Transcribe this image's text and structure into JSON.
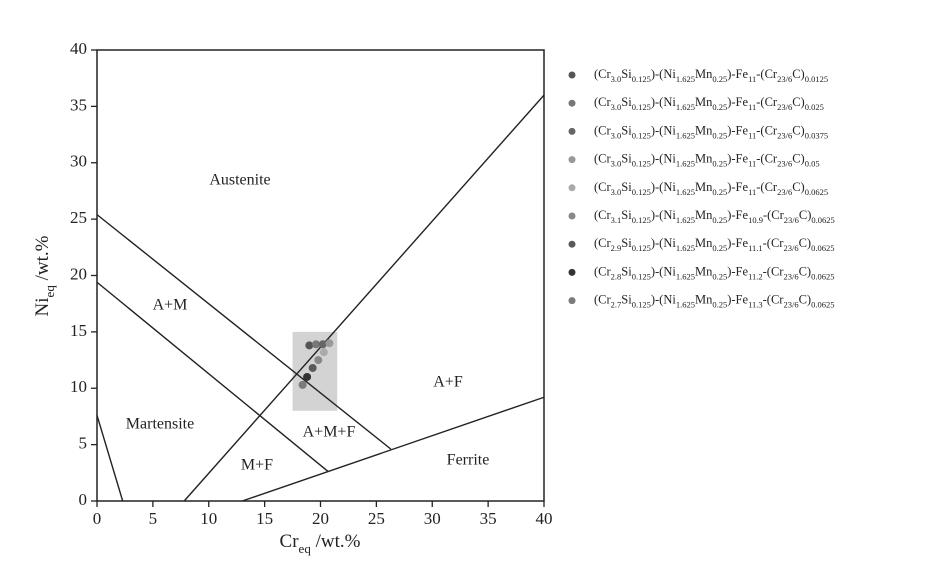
{
  "chart_data": {
    "type": "scatter",
    "xlabel": [
      "Cr",
      "eq",
      " /wt.%"
    ],
    "ylabel": [
      "Ni",
      "eq",
      " /wt.%"
    ],
    "xlim": [
      0,
      40
    ],
    "ylim": [
      0,
      40
    ],
    "xticks": [
      0,
      5,
      10,
      15,
      20,
      25,
      30,
      35,
      40
    ],
    "yticks": [
      0,
      5,
      10,
      15,
      20,
      25,
      30,
      35,
      40
    ],
    "annotations": [
      "Austenite",
      "A+M",
      "Martensite",
      "A+F",
      "A+M+F",
      "M+F",
      "Ferrite"
    ],
    "boundaries": [
      {
        "x": [
          0,
          2.3
        ],
        "y": [
          7.6,
          0
        ]
      },
      {
        "x": [
          0,
          20.7
        ],
        "y": [
          19.4,
          2.6
        ]
      },
      {
        "x": [
          0,
          26.3
        ],
        "y": [
          25.4,
          4.6
        ]
      },
      {
        "x": [
          7.8,
          40
        ],
        "y": [
          0,
          36
        ]
      },
      {
        "x": [
          13,
          40
        ],
        "y": [
          0,
          9.2
        ]
      }
    ],
    "shaded_region": {
      "x": [
        17.5,
        21.5
      ],
      "y": [
        8,
        15
      ],
      "color": "#c8c8c8"
    },
    "series": [
      {
        "name": "(Cr3.0Si0.125)-(Ni1.625Mn0.25)-Fe11-(Cr23/6C)0.0125",
        "color": "#555555",
        "x": [
          19.0
        ],
        "y": [
          13.8
        ]
      },
      {
        "name": "(Cr3.0Si0.125)-(Ni1.625Mn0.25)-Fe11-(Cr23/6C)0.025",
        "color": "#777777",
        "x": [
          19.6
        ],
        "y": [
          13.9
        ]
      },
      {
        "name": "(Cr3.0Si0.125)-(Ni1.625Mn0.25)-Fe11-(Cr23/6C)0.0375",
        "color": "#666666",
        "x": [
          20.2
        ],
        "y": [
          13.9
        ]
      },
      {
        "name": "(Cr3.0Si0.125)-(Ni1.625Mn0.25)-Fe11-(Cr23/6C)0.05",
        "color": "#999999",
        "x": [
          20.8
        ],
        "y": [
          14.0
        ]
      },
      {
        "name": "(Cr3.0Si0.125)-(Ni1.625Mn0.25)-Fe11-(Cr23/6C)0.0625",
        "color": "#aaaaaa",
        "x": [
          20.3
        ],
        "y": [
          13.2
        ]
      },
      {
        "name": "(Cr3.1Si0.125)-(Ni1.625Mn0.25)-Fe10.9-(Cr23/6C)0.0625",
        "color": "#888888",
        "x": [
          19.8
        ],
        "y": [
          12.5
        ]
      },
      {
        "name": "(Cr2.9Si0.125)-(Ni1.625Mn0.25)-Fe11.1-(Cr23/6C)0.0625",
        "color": "#5a5a5a",
        "x": [
          19.3
        ],
        "y": [
          11.8
        ]
      },
      {
        "name": "(Cr2.8Si0.125)-(Ni1.625Mn0.25)-Fe11.2-(Cr23/6C)0.0625",
        "color": "#333333",
        "x": [
          18.8
        ],
        "y": [
          11.0
        ]
      },
      {
        "name": "(Cr2.7Si0.125)-(Ni1.625Mn0.25)-Fe11.3-(Cr23/6C)0.0625",
        "color": "#7a7a7a",
        "x": [
          18.4
        ],
        "y": [
          10.3
        ]
      }
    ]
  }
}
